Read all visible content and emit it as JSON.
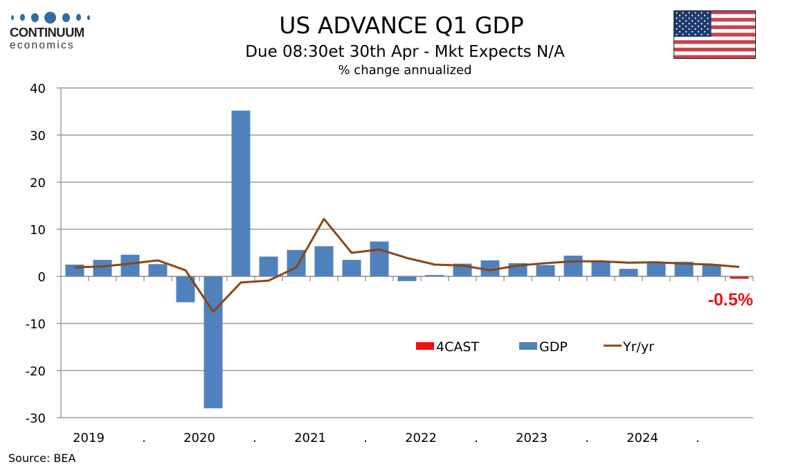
{
  "logo": {
    "name": "CONTINUUM",
    "sub": "economics"
  },
  "header": {
    "title": "US ADVANCE Q1 GDP",
    "subtitle": "Due 08:30et 30th Apr - Mkt Expects N/A",
    "units": "% change annualized"
  },
  "flag": {
    "icon": "us-flag-icon"
  },
  "source": "Source: BEA",
  "colors": {
    "gdp": "#4f81bd",
    "forecast": "#ee1111",
    "yoy": "#8b4513",
    "axis": "#888888"
  },
  "chart_data": {
    "type": "bar",
    "title": "US ADVANCE Q1 GDP",
    "subtitle": "Due 08:30et 30th Apr - Mkt Expects N/A",
    "ylabel": "% change annualized",
    "xlabel": "",
    "ylim": [
      -30,
      40
    ],
    "yticks": [
      40,
      30,
      20,
      10,
      0,
      -10,
      -20,
      -30
    ],
    "grid": true,
    "legend_position": "bottom-right",
    "x": [
      "2019Q1",
      "2019Q2",
      "2019Q3",
      "2019Q4",
      "2020Q1",
      "2020Q2",
      "2020Q3",
      "2020Q4",
      "2021Q1",
      "2021Q2",
      "2021Q3",
      "2021Q4",
      "2022Q1",
      "2022Q2",
      "2022Q3",
      "2022Q4",
      "2023Q1",
      "2023Q2",
      "2023Q3",
      "2023Q4",
      "2024Q1",
      "2024Q2",
      "2024Q3",
      "2024Q4",
      "2025Q1"
    ],
    "xtick_labels": [
      "2019",
      ".",
      "2020",
      ".",
      "2021",
      ".",
      "2022",
      ".",
      "2023",
      ".",
      "2024",
      "."
    ],
    "series": [
      {
        "name": "4CAST",
        "type": "bar",
        "values": [
          null,
          null,
          null,
          null,
          null,
          null,
          null,
          null,
          null,
          null,
          null,
          null,
          null,
          null,
          null,
          null,
          null,
          null,
          null,
          null,
          null,
          null,
          null,
          null,
          -0.5
        ]
      },
      {
        "name": "GDP",
        "type": "bar",
        "values": [
          2.5,
          3.5,
          4.6,
          2.6,
          -5.5,
          -28.0,
          35.2,
          4.2,
          5.6,
          6.4,
          3.5,
          7.4,
          -1.0,
          0.3,
          2.7,
          3.4,
          2.8,
          2.4,
          4.4,
          3.2,
          1.6,
          3.0,
          3.1,
          2.4,
          null
        ]
      },
      {
        "name": "Yr/yr",
        "type": "line",
        "values": [
          1.9,
          2.1,
          2.7,
          3.4,
          1.3,
          -7.5,
          -1.3,
          -0.9,
          1.9,
          12.2,
          5.0,
          5.7,
          3.9,
          2.5,
          2.3,
          1.3,
          2.3,
          2.8,
          3.2,
          3.2,
          2.9,
          3.0,
          2.7,
          2.5,
          2.0
        ]
      }
    ],
    "annotations": [
      {
        "label": "-0.5%",
        "x": "2025Q1"
      }
    ]
  }
}
